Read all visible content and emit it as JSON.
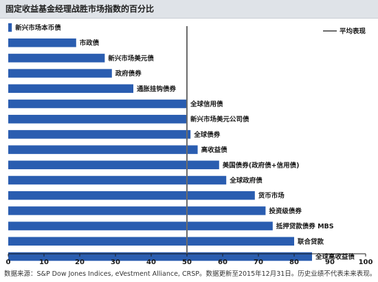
{
  "title": "固定收益基金经理战胜市场指数的百分比",
  "source": "数据来源：S&P Dow Jones Indices, eVestment Alliance, CRSP。数据更新至2015年12月31日。历史业绩不代表未来表现。",
  "colors": {
    "bar": "#2a5db0",
    "average_line": "#6b6b6b",
    "title_bg": "#dfe3e8"
  },
  "chart_data": {
    "type": "bar",
    "orientation": "horizontal",
    "categories": [
      "新兴市场本币债",
      "市政债",
      "新兴市场美元债",
      "政府债券",
      "通胀挂钩债券",
      "全球信用债",
      "新兴市场美元公司债",
      "全球债券",
      "高收益债",
      "美国债券(政府债+信用债)",
      "全球政府债",
      "货币市场",
      "投资级债券",
      "抵押贷款债券 MBS",
      "联合贷款",
      "全球高收益债"
    ],
    "values": [
      1,
      19,
      27,
      29,
      35,
      50,
      50,
      51,
      53,
      59,
      61,
      69,
      72,
      74,
      80,
      85
    ],
    "xlim": [
      0,
      100
    ],
    "xticks": [
      0,
      10,
      20,
      30,
      40,
      50,
      60,
      70,
      80,
      90,
      100
    ],
    "average": 50,
    "legend": [
      {
        "name": "平均表现",
        "type": "line"
      }
    ],
    "legend_position": "top-right",
    "grid": false
  }
}
